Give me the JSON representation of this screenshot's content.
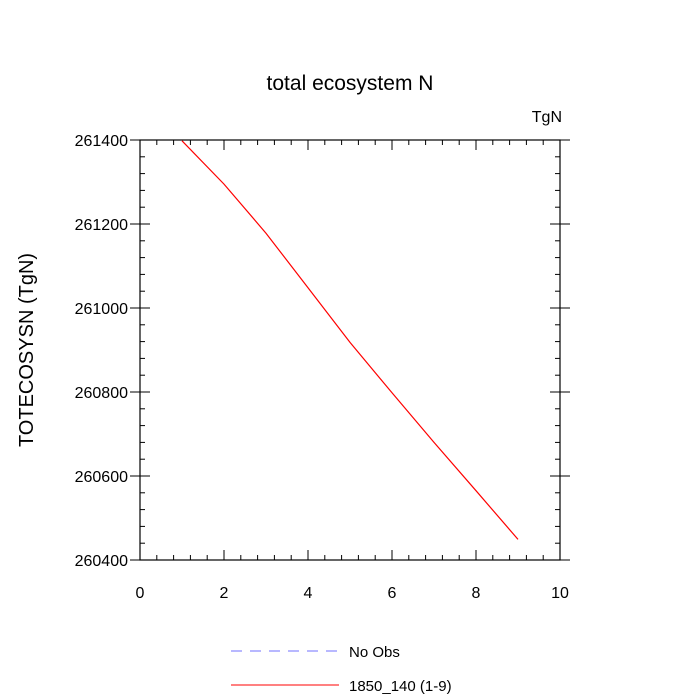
{
  "chart_data": {
    "type": "line",
    "title": "total ecosystem N",
    "units_label": "TgN",
    "ylabel": "TOTECOSYSN  (TgN)",
    "xlabel": "",
    "xlim": [
      0,
      10
    ],
    "ylim": [
      260400,
      261400
    ],
    "x_ticks": [
      "0",
      "2",
      "4",
      "6",
      "8",
      "10"
    ],
    "y_ticks": [
      "260400",
      "260600",
      "260800",
      "261000",
      "261200",
      "261400"
    ],
    "grid": false,
    "legend_position": "bottom-center",
    "series": [
      {
        "name": "1850_140 (1-9)",
        "color": "#ff0000",
        "style": "solid",
        "x": [
          1,
          2,
          3,
          4,
          5,
          6,
          7,
          8,
          9
        ],
        "values": [
          261398,
          261295,
          261178,
          261048,
          260918,
          260798,
          260680,
          260565,
          260449
        ]
      }
    ],
    "legend": [
      {
        "label": "No Obs",
        "color": "#7070ff",
        "style": "dashed"
      },
      {
        "label": "1850_140 (1-9)",
        "color": "#ff0000",
        "style": "solid"
      }
    ]
  }
}
